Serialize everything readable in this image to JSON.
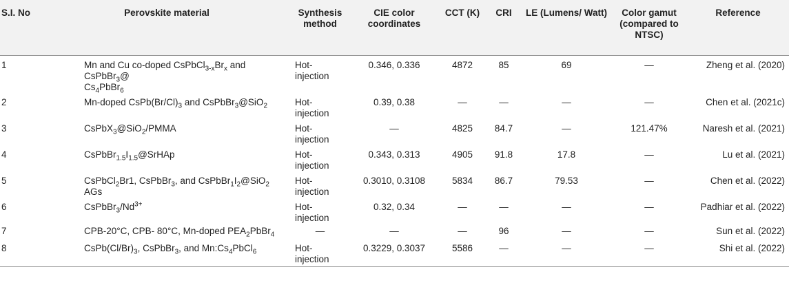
{
  "headers": {
    "sl": "S.I. No",
    "material": "Perovskite material",
    "synthesis": "Synthesis method",
    "cie": "CIE color coordinates",
    "cct": "CCT (K)",
    "cri": "CRI",
    "le": "LE (Lumens/ Watt)",
    "gamut": "Color gamut (compared to NTSC)",
    "reference": "Reference"
  },
  "rows": [
    {
      "sl": "1",
      "material": "Mn and Cu co-doped CsPbCl3-xBrx and CsPbBr3@Cs4PbBr6",
      "synthesis": "Hot-injection",
      "cie": "0.346, 0.336",
      "cct": "4872",
      "cri": "85",
      "le": "69",
      "gamut": "—",
      "reference": "Zheng et al. (2020)"
    },
    {
      "sl": "2",
      "material": "Mn-doped CsPb(Br/Cl)3 and CsPbBr3@SiO2",
      "synthesis": "Hot-injection",
      "cie": "0.39, 0.38",
      "cct": "—",
      "cri": "—",
      "le": "—",
      "gamut": "—",
      "reference": "Chen et al. (2021c)"
    },
    {
      "sl": "3",
      "material": "CsPbX3@SiO2/PMMA",
      "synthesis": "Hot-injection",
      "cie": "—",
      "cct": "4825",
      "cri": "84.7",
      "le": "—",
      "gamut": "121.47%",
      "reference": "Naresh et al. (2021)"
    },
    {
      "sl": "4",
      "material": "CsPbBr1.5I1.5@SrHAp",
      "synthesis": "Hot-injection",
      "cie": "0.343, 0.313",
      "cct": "4905",
      "cri": "91.8",
      "le": "17.8",
      "gamut": "—",
      "reference": "Lu et al. (2021)"
    },
    {
      "sl": "5",
      "material": "CsPbCl2Br1, CsPbBr3, and CsPbBr1I2@SiO2 AGs",
      "synthesis": "Hot-injection",
      "cie": "0.3010, 0.3108",
      "cct": "5834",
      "cri": "86.7",
      "le": "79.53",
      "gamut": "—",
      "reference": "Chen et al. (2022)"
    },
    {
      "sl": "6",
      "material": "CsPbBr3/Nd3+",
      "synthesis": "Hot-injection",
      "cie": "0.32, 0.34",
      "cct": "—",
      "cri": "—",
      "le": "—",
      "gamut": "—",
      "reference": "Padhiar et al. (2022)"
    },
    {
      "sl": "7",
      "material": "CPB-20°C, CPB- 80°C, Mn-doped PEA2PbBr4",
      "synthesis": "—",
      "cie": "—",
      "cct": "—",
      "cri": "96",
      "le": "—",
      "gamut": "—",
      "reference": "Sun et al. (2022)"
    },
    {
      "sl": "8",
      "material": "CsPb(Cl/Br)3, CsPbBr3, and Mn:Cs4PbCl6",
      "synthesis": "Hot-injection",
      "cie": "0.3229, 0.3037",
      "cct": "5586",
      "cri": "—",
      "le": "—",
      "gamut": "—",
      "reference": "Shi et al. (2022)"
    }
  ]
}
